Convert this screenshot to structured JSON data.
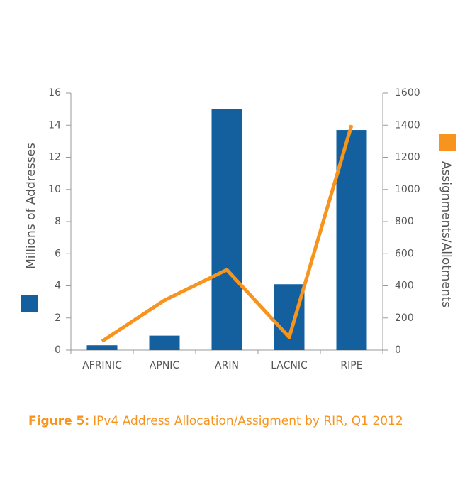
{
  "chart_data": {
    "type": "bar_line",
    "categories": [
      "AFRINIC",
      "APNIC",
      "ARIN",
      "LACNIC",
      "RIPE"
    ],
    "series": [
      {
        "color": "#14609f",
        "values": [
          0.3,
          0.9,
          15,
          4.1,
          13.7
        ]
      },
      {
        "color": "#f7941d",
        "values": [
          55,
          310,
          500,
          80,
          1400
        ],
        "axis": "y2"
      }
    ],
    "ylabel": "Millions of Addresses",
    "y2label": "Assignments/Allotments",
    "ylim": [
      0,
      16
    ],
    "yticks": [
      0,
      2,
      4,
      6,
      8,
      10,
      12,
      14,
      16
    ],
    "y2lim": [
      0,
      1600
    ],
    "y2ticks": [
      0,
      200,
      400,
      600,
      800,
      1000,
      1200,
      1400,
      1600
    ],
    "caption_label": "Figure 5:",
    "caption_text": "IPv4 Address Allocation/Assigment by RIR, Q1 2012"
  }
}
